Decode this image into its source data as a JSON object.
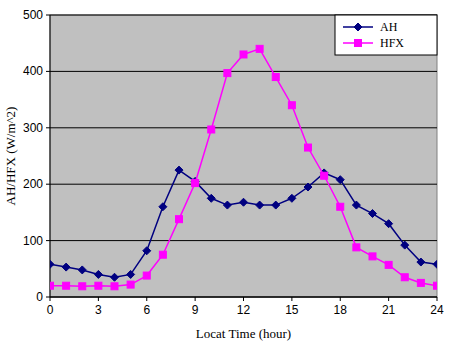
{
  "chart_data": {
    "type": "line",
    "x_label": "Locat Time (hour)",
    "y_label": "AH/HFX (W/m^2)",
    "x": [
      0,
      1,
      2,
      3,
      4,
      5,
      6,
      7,
      8,
      9,
      10,
      11,
      12,
      13,
      14,
      15,
      16,
      17,
      18,
      19,
      20,
      21,
      22,
      23,
      24
    ],
    "series": [
      {
        "name": "AH",
        "color": "#000080",
        "marker": "diamond",
        "values": [
          58,
          53,
          48,
          40,
          35,
          40,
          82,
          160,
          225,
          205,
          175,
          163,
          168,
          163,
          163,
          175,
          195,
          220,
          208,
          163,
          148,
          130,
          92,
          62,
          58
        ]
      },
      {
        "name": "HFX",
        "color": "#ff00ff",
        "marker": "square",
        "values": [
          20,
          20,
          19,
          20,
          19,
          22,
          38,
          75,
          138,
          202,
          297,
          397,
          430,
          440,
          390,
          340,
          265,
          215,
          160,
          88,
          72,
          57,
          35,
          25,
          20
        ]
      }
    ],
    "xlim": [
      0,
      24
    ],
    "xticks": [
      0,
      3,
      6,
      9,
      12,
      15,
      18,
      21,
      24
    ],
    "ylim": [
      0,
      500
    ],
    "yticks": [
      0,
      100,
      200,
      300,
      400,
      500
    ],
    "grid": true,
    "legend": "top-right"
  }
}
